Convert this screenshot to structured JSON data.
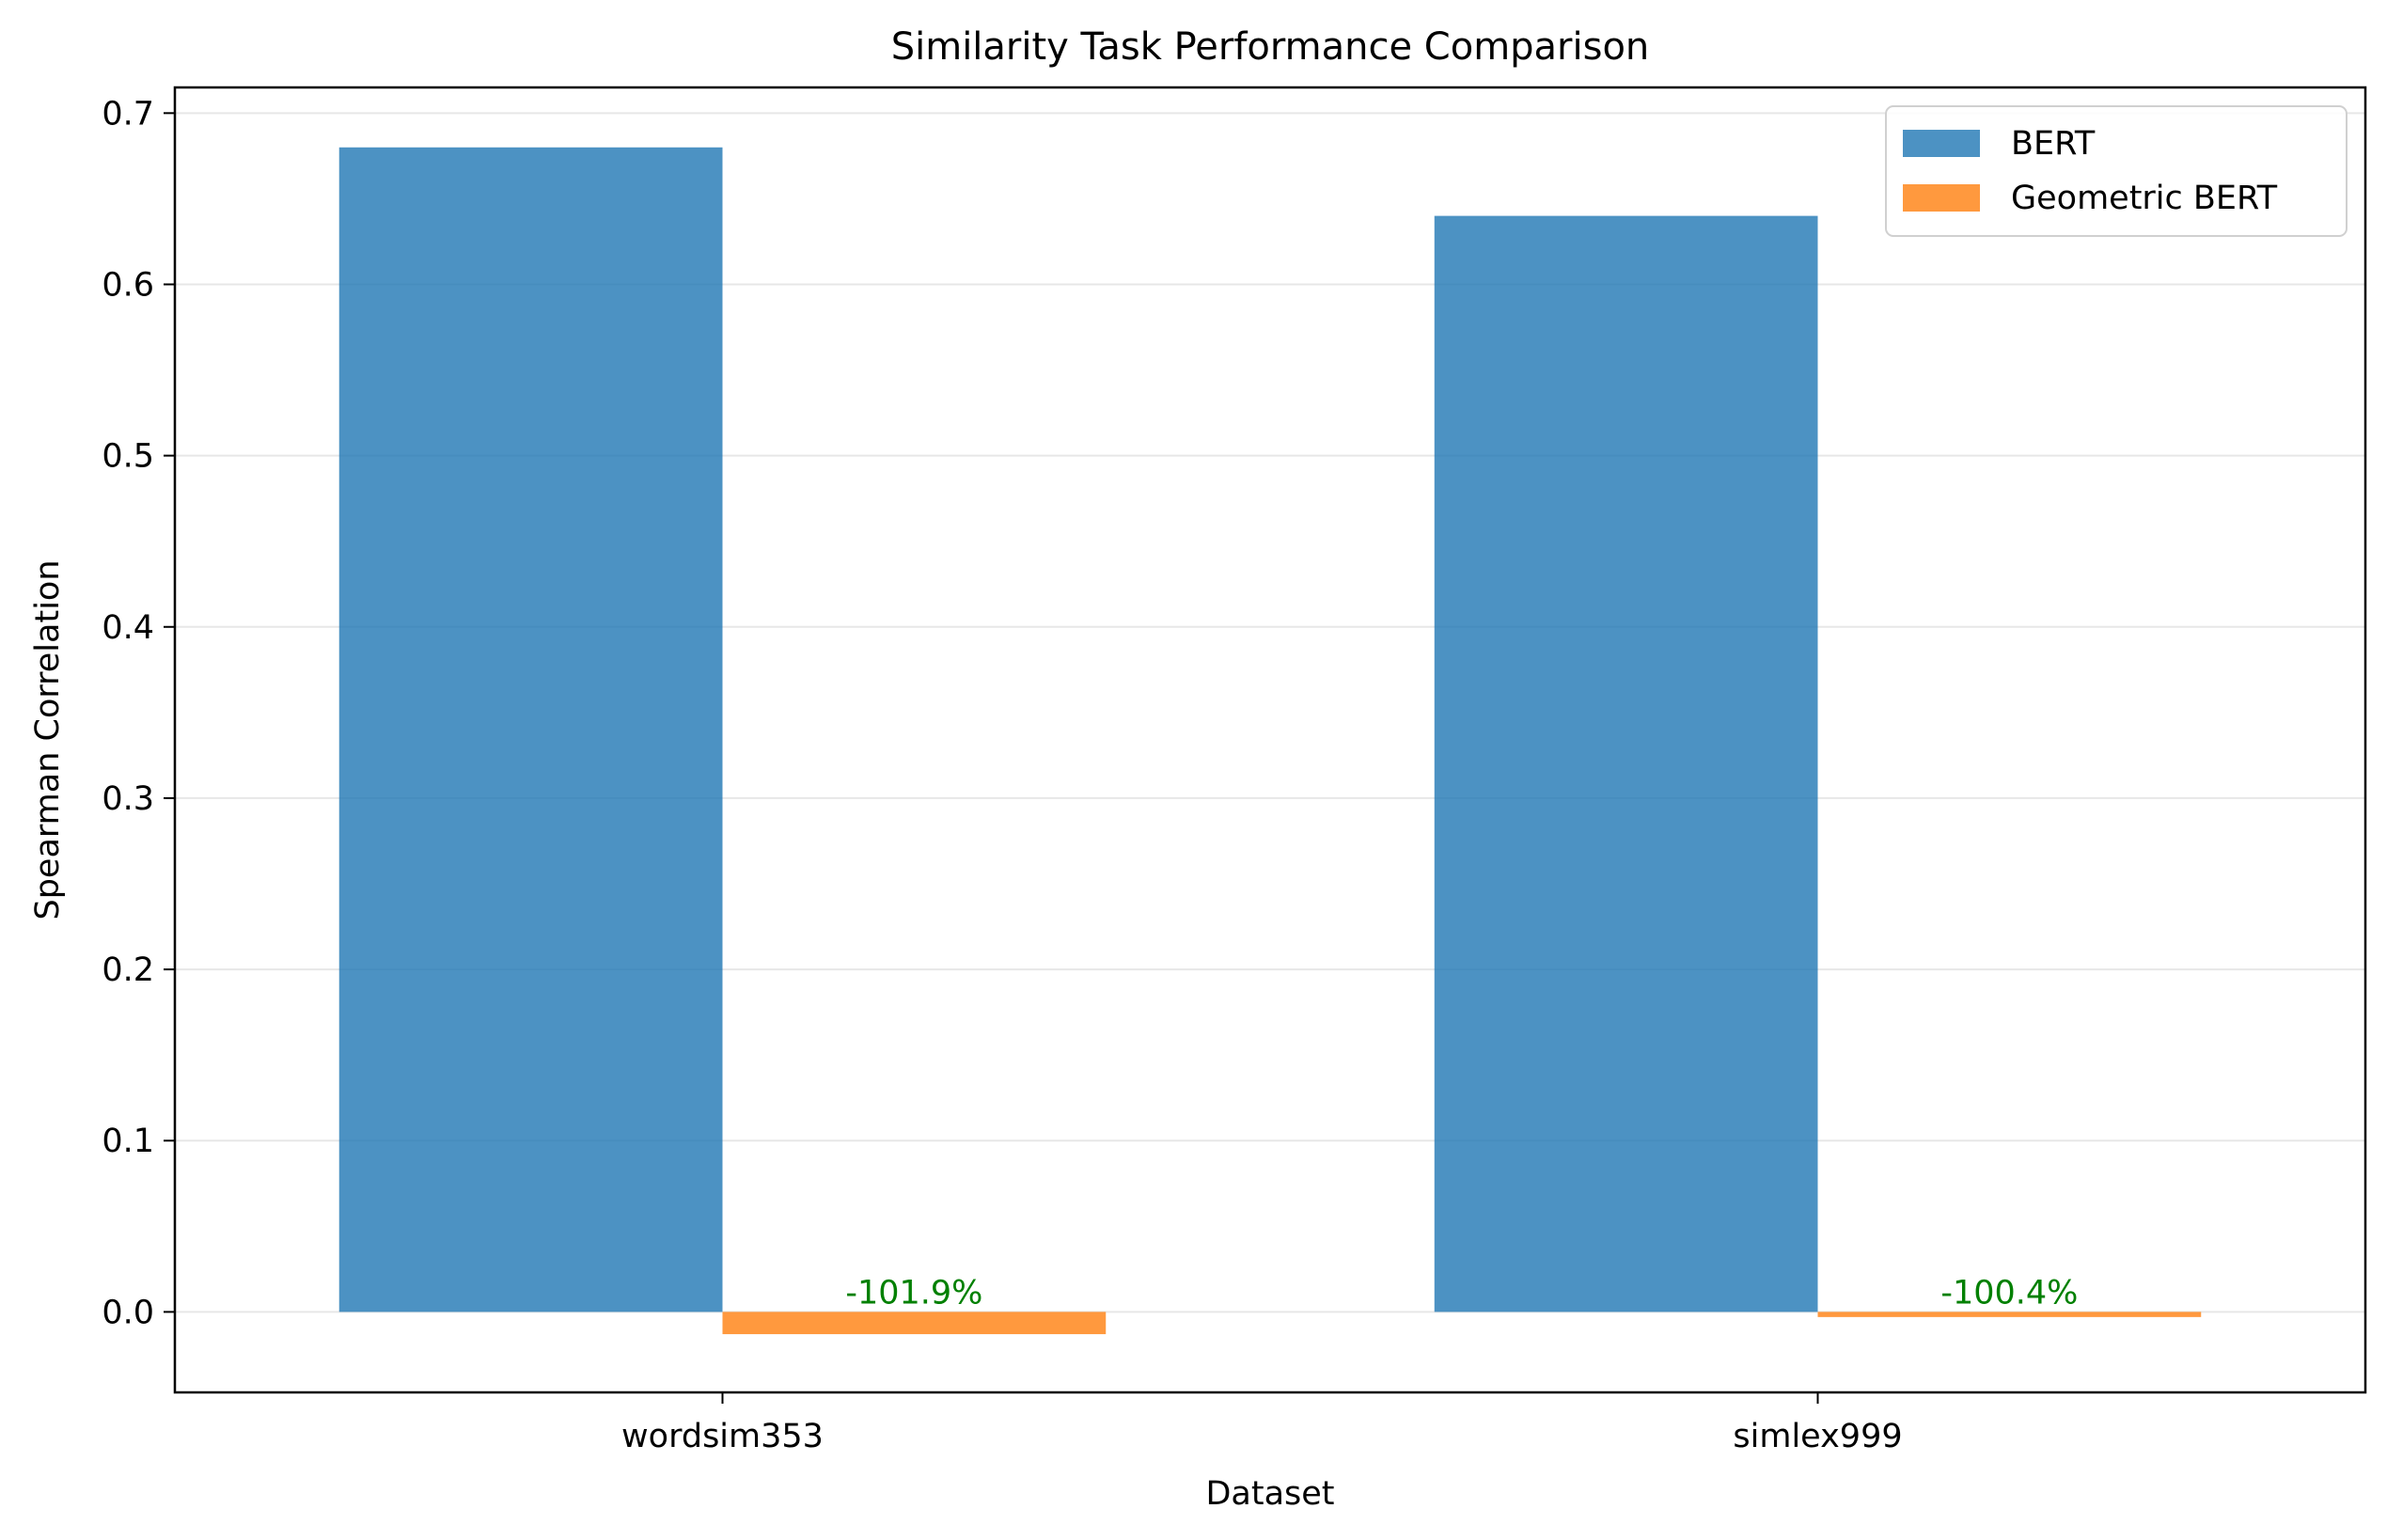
{
  "chart_data": {
    "type": "bar",
    "title": "Similarity Task Performance Comparison",
    "xlabel": "Dataset",
    "ylabel": "Spearman Correlation",
    "categories": [
      "wordsim353",
      "simlex999"
    ],
    "series": [
      {
        "name": "BERT",
        "values": [
          0.68,
          0.64
        ],
        "color": "#1f77b4"
      },
      {
        "name": "Geometric BERT",
        "values": [
          -0.013,
          -0.003
        ],
        "color": "#ff7f0e"
      }
    ],
    "annotations": [
      {
        "category": "wordsim353",
        "text": "-101.9%"
      },
      {
        "category": "simlex999",
        "text": "-100.4%"
      }
    ],
    "annotation_color": "#008000",
    "ylim": [
      -0.047,
      0.715
    ],
    "yticks": [
      0.0,
      0.1,
      0.2,
      0.3,
      0.4,
      0.5,
      0.6,
      0.7
    ],
    "ytick_labels": [
      "0.0",
      "0.1",
      "0.2",
      "0.3",
      "0.4",
      "0.5",
      "0.6",
      "0.7"
    ],
    "grid": "y",
    "legend_position": "top-right"
  }
}
